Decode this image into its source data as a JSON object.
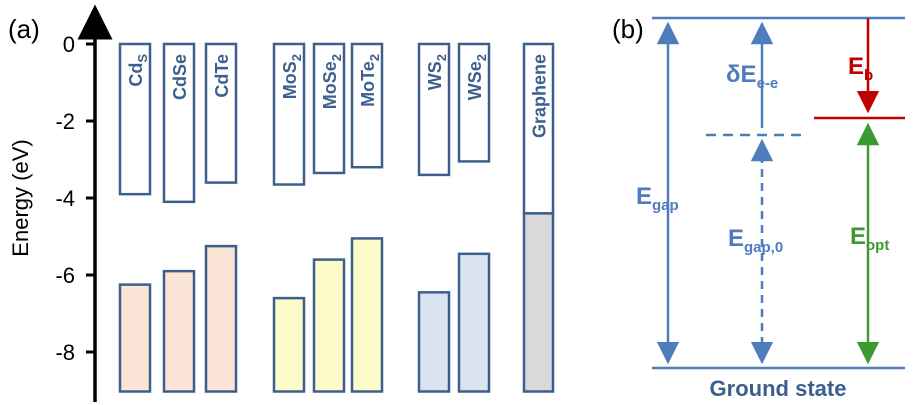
{
  "panels": {
    "a_label": "(a)",
    "b_label": "(b)"
  },
  "colors": {
    "outline": "#3c5f8e",
    "cd": "#fbe5d7",
    "mo": "#fdfbc9",
    "w": "#dae4f1",
    "graphene": "#d9d9d9",
    "band_blue": "#4f7cbc",
    "eb_red": "#c00000",
    "opt_green": "#3c9a32",
    "axis": "#000000"
  },
  "chart_data": {
    "type": "bar",
    "ylabel": "Energy (eV)",
    "ylim": [
      -9,
      0.4
    ],
    "yticks": [
      "0",
      "-2",
      "-4",
      "-6",
      "-8"
    ],
    "ytick_values": [
      0,
      -2,
      -4,
      -6,
      -8
    ],
    "materials": [
      {
        "name": "CdS",
        "base": "Cd",
        "sub": "S",
        "cbm": -3.9,
        "vbm": -6.25,
        "family": "cd"
      },
      {
        "name": "CdSe",
        "base": "CdSe",
        "sub": "",
        "cbm": -4.1,
        "vbm": -5.9,
        "family": "cd"
      },
      {
        "name": "CdTe",
        "base": "CdTe",
        "sub": "",
        "cbm": -3.6,
        "vbm": -5.25,
        "family": "cd"
      },
      {
        "name": "MoS2",
        "base": "MoS",
        "sub": "2",
        "cbm": -3.65,
        "vbm": -6.6,
        "family": "mo"
      },
      {
        "name": "MoSe2",
        "base": "MoSe",
        "sub": "2",
        "cbm": -3.35,
        "vbm": -5.6,
        "family": "mo"
      },
      {
        "name": "MoTe2",
        "base": "MoTe",
        "sub": "2",
        "cbm": -3.2,
        "vbm": -5.05,
        "family": "mo"
      },
      {
        "name": "WS2",
        "base": "WS",
        "sub": "2",
        "cbm": -3.4,
        "vbm": -6.45,
        "family": "w"
      },
      {
        "name": "WSe2",
        "base": "WSe",
        "sub": "2",
        "cbm": -3.05,
        "vbm": -5.45,
        "family": "w"
      },
      {
        "name": "Graphene",
        "base": "Graphene",
        "sub": "",
        "cbm": -4.4,
        "vbm": -4.4,
        "family": "graphene"
      }
    ]
  },
  "diagram_b": {
    "ground_state": "Ground state",
    "e_gap": {
      "base": "E",
      "sub": "gap"
    },
    "e_gap0": {
      "base": "E",
      "sub": "gap,0"
    },
    "delta_e": {
      "base": "δE",
      "sub": "e-e"
    },
    "e_b": {
      "base": "E",
      "sub": "b"
    },
    "e_opt": {
      "base": "E",
      "sub": "opt"
    }
  }
}
